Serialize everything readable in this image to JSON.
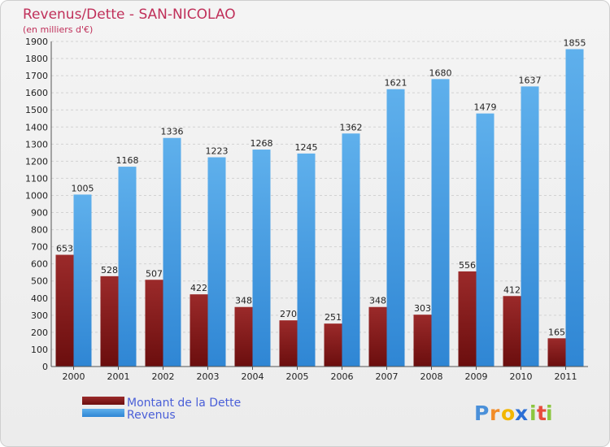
{
  "colors": {
    "dette": "#6b0e0e",
    "dette_light": "#9b2a2a",
    "revenus": "#2f86d4",
    "revenus_light": "#5fb0ec",
    "title": "#c0305a",
    "legend": "#4a5fd8"
  },
  "logo": {
    "letters": [
      "P",
      "r",
      "o",
      "x",
      "i",
      "t",
      "i"
    ],
    "colors": [
      "#4a90d9",
      "#f28c28",
      "#f2b600",
      "#2b6fd6",
      "#8cc63f",
      "#e74c3c",
      "#8cc63f"
    ]
  },
  "chart_data": {
    "type": "bar",
    "title": "Revenus/Dette - SAN-NICOLAO",
    "subtitle": "(en milliers d'€)",
    "categories": [
      "2000",
      "2001",
      "2002",
      "2003",
      "2004",
      "2005",
      "2006",
      "2007",
      "2008",
      "2009",
      "2010",
      "2011"
    ],
    "series": [
      {
        "name": "Montant de la Dette",
        "values": [
          653,
          528,
          507,
          422,
          348,
          270,
          251,
          348,
          303,
          556,
          412,
          165
        ]
      },
      {
        "name": "Revenus",
        "values": [
          1005,
          1168,
          1336,
          1223,
          1268,
          1245,
          1362,
          1621,
          1680,
          1479,
          1637,
          1855
        ]
      }
    ],
    "ylim": [
      0,
      1900
    ],
    "ytick_step": 100,
    "grid": true,
    "legend_position": "bottom-left"
  }
}
